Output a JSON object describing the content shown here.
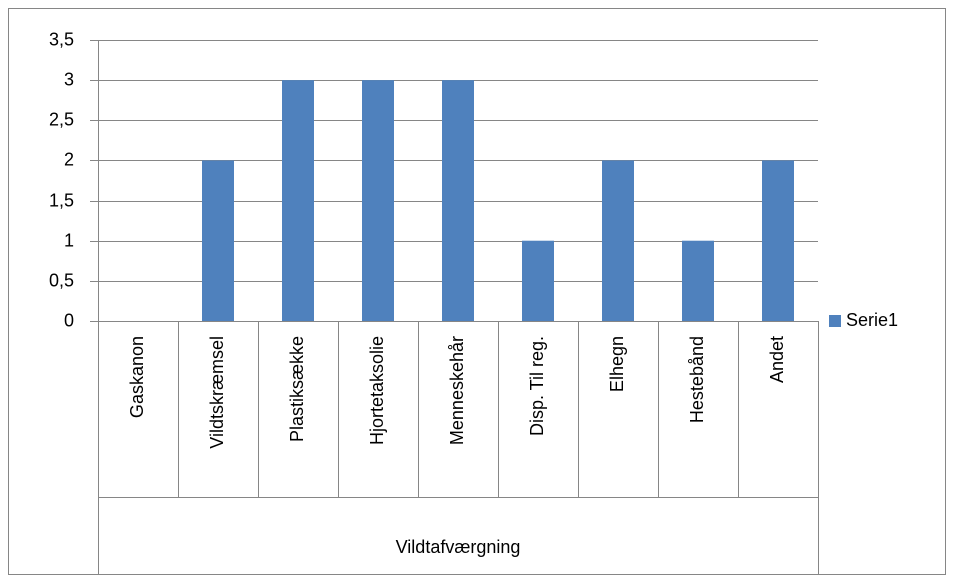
{
  "chart_data": {
    "type": "bar",
    "categories": [
      "Gaskanon",
      "Vildtskræmsel",
      "Plastiksække",
      "Hjortetaksolie",
      "Menneskehår",
      "Disp. Til reg.",
      "Elhegn",
      "Hestebånd",
      "Andet"
    ],
    "xlabel": "Vildtafværgning",
    "series": [
      {
        "name": "Serie1",
        "color": "#4f81bd",
        "values": [
          0,
          2,
          3,
          3,
          3,
          1,
          2,
          1,
          2
        ]
      }
    ],
    "ylim": [
      0,
      3.5
    ],
    "yticks": [
      0,
      {
        "value": 0.5,
        "label": "0,5"
      },
      1,
      {
        "value": 1.5,
        "label": "1,5"
      },
      2,
      {
        "value": 2.5,
        "label": "2,5"
      },
      3,
      {
        "value": 3.5,
        "label": "3,5"
      }
    ],
    "grid": true,
    "legend": "right"
  }
}
